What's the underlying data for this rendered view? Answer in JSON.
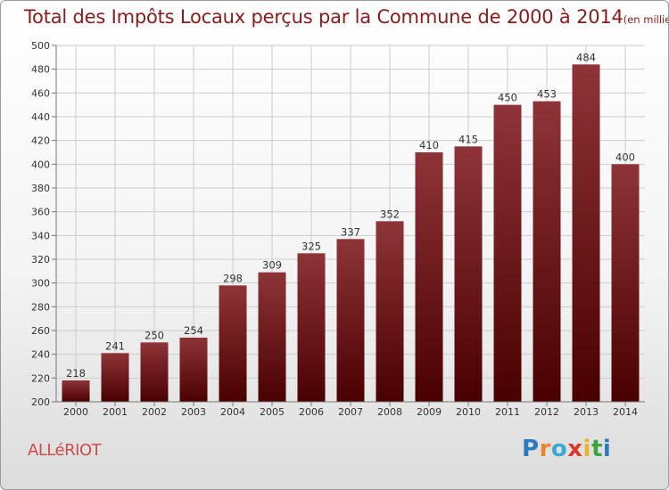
{
  "title": "Total des Impôts Locaux perçus par la Commune de 2000 à 2014",
  "unit_label": "(en milliers d'€)",
  "commune": "ALLéRIOT",
  "logo": {
    "letters": [
      "P",
      "r",
      "o",
      "x",
      "i",
      "t",
      "i"
    ],
    "colors": [
      "#2b7bc0",
      "#e8862a",
      "#3aa9d6",
      "#d93b2b",
      "#e8b52a",
      "#3aa546",
      "#2b7bc0"
    ]
  },
  "colors": {
    "bar_top": "#8e3438",
    "bar_bottom": "#4a0000",
    "title": "#8b1a1a",
    "grid": "#cccccc"
  },
  "chart_data": {
    "type": "bar",
    "title": "Total des Impôts Locaux perçus par la Commune de 2000 à 2014",
    "xlabel": "",
    "ylabel": "",
    "categories": [
      "2000",
      "2001",
      "2002",
      "2003",
      "2004",
      "2005",
      "2006",
      "2007",
      "2008",
      "2009",
      "2010",
      "2011",
      "2012",
      "2013",
      "2014"
    ],
    "values": [
      218,
      241,
      250,
      254,
      298,
      309,
      325,
      337,
      352,
      410,
      415,
      450,
      453,
      484,
      400
    ],
    "ylim": [
      200,
      500
    ],
    "yticks": [
      200,
      220,
      240,
      260,
      280,
      300,
      320,
      340,
      360,
      380,
      400,
      420,
      440,
      460,
      480,
      500
    ],
    "grid": true
  }
}
